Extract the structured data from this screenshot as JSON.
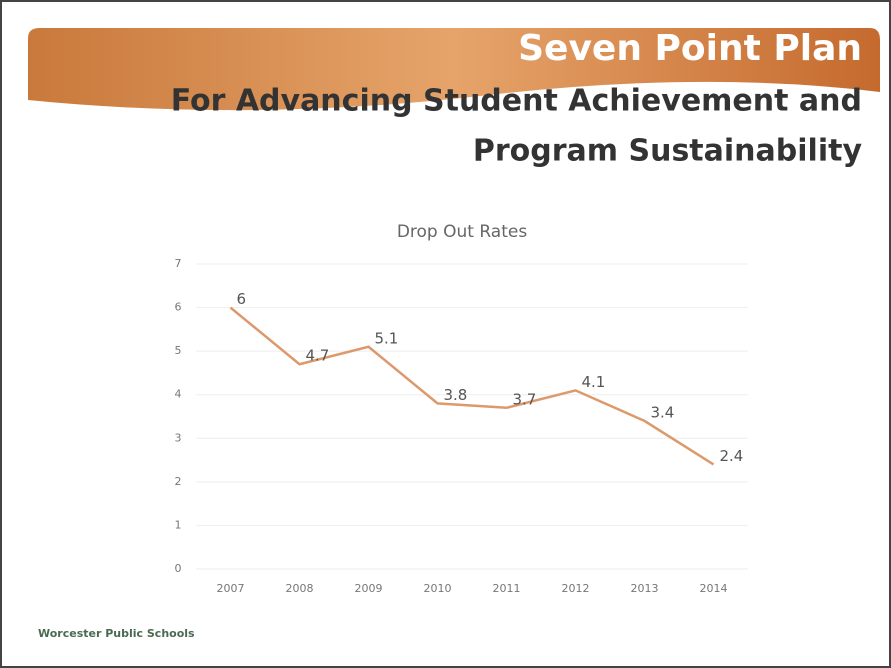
{
  "header": {
    "title": "Seven Point Plan",
    "subtitle_lines": [
      "For Advancing Student Achievement and",
      "Program Sustainability"
    ]
  },
  "footer": "Worcester Public Schools",
  "chart_data": {
    "type": "line",
    "title": "Drop Out Rates",
    "categories": [
      "2007",
      "2008",
      "2009",
      "2010",
      "2011",
      "2012",
      "2013",
      "2014"
    ],
    "values": [
      6,
      4.7,
      5.1,
      3.8,
      3.7,
      4.1,
      3.4,
      2.4
    ],
    "color": "#dc9a6c",
    "ylim": [
      0,
      7
    ],
    "yticks": [
      0,
      1,
      2,
      3,
      4,
      5,
      6,
      7
    ],
    "grid": true
  }
}
